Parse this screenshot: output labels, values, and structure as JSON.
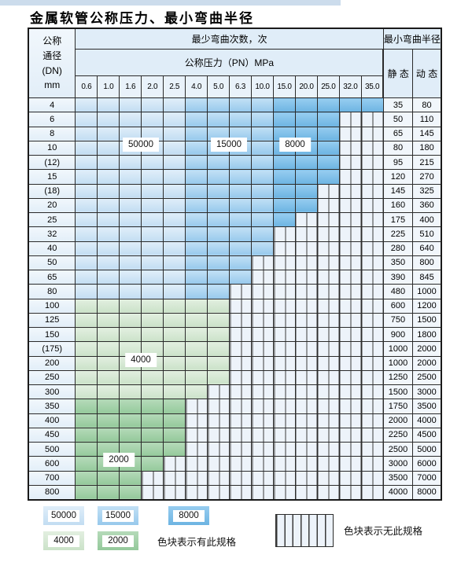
{
  "page_title": "金属软管公称压力、最小弯曲半径",
  "table": {
    "header": {
      "dn_label_lines": [
        "公称",
        "通径",
        "(DN)",
        "mm"
      ],
      "cycles_label": "最少弯曲次数，次",
      "pressure_label": "公称压力（PN）MPa",
      "pressure_columns": [
        "0.6",
        "1.0",
        "1.6",
        "2.0",
        "2.5",
        "4.0",
        "5.0",
        "6.3",
        "10.0",
        "15.0",
        "20.0",
        "25.0",
        "32.0",
        "35.0"
      ],
      "radius_label": "最小弯曲半径",
      "static_label": "静 态",
      "dynamic_label": "动 态"
    },
    "band_rules": {
      "blue_50000_columns": [
        "0.6",
        "1.0",
        "1.6",
        "2.0",
        "2.5"
      ],
      "blue_15000_columns": [
        "4.0",
        "5.0",
        "6.3",
        "10.0"
      ],
      "blue_8000_columns": [
        "15.0",
        "20.0",
        "25.0",
        "32.0",
        "35.0"
      ]
    },
    "rows": [
      {
        "dn": "4",
        "colored_through": "35.0",
        "palette": "blue",
        "static": "35",
        "dynamic": "80"
      },
      {
        "dn": "6",
        "colored_through": "25.0",
        "palette": "blue",
        "static": "50",
        "dynamic": "110"
      },
      {
        "dn": "8",
        "colored_through": "25.0",
        "palette": "blue",
        "static": "65",
        "dynamic": "145"
      },
      {
        "dn": "10",
        "colored_through": "25.0",
        "palette": "blue",
        "static": "80",
        "dynamic": "180"
      },
      {
        "dn": "(12)",
        "colored_through": "25.0",
        "palette": "blue",
        "static": "95",
        "dynamic": "215"
      },
      {
        "dn": "15",
        "colored_through": "25.0",
        "palette": "blue",
        "static": "120",
        "dynamic": "270"
      },
      {
        "dn": "(18)",
        "colored_through": "20.0",
        "palette": "blue",
        "static": "145",
        "dynamic": "325"
      },
      {
        "dn": "20",
        "colored_through": "20.0",
        "palette": "blue",
        "static": "160",
        "dynamic": "360"
      },
      {
        "dn": "25",
        "colored_through": "15.0",
        "palette": "blue",
        "static": "175",
        "dynamic": "400"
      },
      {
        "dn": "32",
        "colored_through": "10.0",
        "palette": "blue",
        "static": "225",
        "dynamic": "510"
      },
      {
        "dn": "40",
        "colored_through": "10.0",
        "palette": "blue",
        "static": "280",
        "dynamic": "640"
      },
      {
        "dn": "50",
        "colored_through": "6.3",
        "palette": "blue",
        "static": "350",
        "dynamic": "800"
      },
      {
        "dn": "65",
        "colored_through": "6.3",
        "palette": "blue",
        "static": "390",
        "dynamic": "845"
      },
      {
        "dn": "80",
        "colored_through": "5.0",
        "palette": "blue",
        "static": "480",
        "dynamic": "1000"
      },
      {
        "dn": "100",
        "colored_through": "5.0",
        "palette": "green4000",
        "static": "600",
        "dynamic": "1200"
      },
      {
        "dn": "125",
        "colored_through": "5.0",
        "palette": "green4000",
        "static": "750",
        "dynamic": "1500"
      },
      {
        "dn": "150",
        "colored_through": "5.0",
        "palette": "green4000",
        "static": "900",
        "dynamic": "1800"
      },
      {
        "dn": "(175)",
        "colored_through": "5.0",
        "palette": "green4000",
        "static": "1000",
        "dynamic": "2000"
      },
      {
        "dn": "200",
        "colored_through": "5.0",
        "palette": "green4000",
        "static": "1000",
        "dynamic": "2000"
      },
      {
        "dn": "250",
        "colored_through": "5.0",
        "palette": "green4000",
        "static": "1250",
        "dynamic": "2500"
      },
      {
        "dn": "300",
        "colored_through": "4.0",
        "palette": "green4000",
        "static": "1500",
        "dynamic": "3000"
      },
      {
        "dn": "350",
        "colored_through": "2.5",
        "palette": "green2000",
        "static": "1750",
        "dynamic": "3500"
      },
      {
        "dn": "400",
        "colored_through": "2.5",
        "palette": "green2000",
        "static": "2000",
        "dynamic": "4000"
      },
      {
        "dn": "450",
        "colored_through": "2.5",
        "palette": "green2000",
        "static": "2250",
        "dynamic": "4500"
      },
      {
        "dn": "500",
        "colored_through": "2.5",
        "palette": "green2000",
        "static": "2500",
        "dynamic": "5000"
      },
      {
        "dn": "600",
        "colored_through": "2.0",
        "palette": "green2000",
        "static": "3000",
        "dynamic": "6000"
      },
      {
        "dn": "700",
        "colored_through": "1.6",
        "palette": "green2000",
        "static": "3500",
        "dynamic": "7000"
      },
      {
        "dn": "800",
        "colored_through": "1.6",
        "palette": "green2000",
        "static": "4000",
        "dynamic": "8000"
      }
    ],
    "overlay_labels": [
      {
        "text": "50000",
        "row_dn": "10",
        "col_start": "1.6",
        "col_end": "2.0"
      },
      {
        "text": "15000",
        "row_dn": "10",
        "col_start": "5.0",
        "col_end": "6.3"
      },
      {
        "text": "8000",
        "row_dn": "10",
        "col_start": "15.0",
        "col_end": "20.0"
      },
      {
        "text": "4000",
        "row_dn": "200",
        "col_start": "1.6",
        "col_end": "2.0"
      },
      {
        "text": "2000",
        "row_dn": "600",
        "col_start": "1.0",
        "col_end": "1.6"
      }
    ]
  },
  "legend": {
    "items": [
      {
        "label": "50000",
        "band": "band_50000"
      },
      {
        "label": "15000",
        "band": "band_15000"
      },
      {
        "label": "8000",
        "band": "band_8000"
      },
      {
        "label": "4000",
        "band": "band_4000"
      },
      {
        "label": "2000",
        "band": "band_2000"
      }
    ],
    "has_spec_label": "色块表示有此规格",
    "no_spec_label": "色块表示无此规格"
  },
  "colors": {
    "band_50000": [
      "#e0eef9",
      "#c2ddf2"
    ],
    "band_15000": [
      "#c2e0f5",
      "#97c9ec"
    ],
    "band_8000": [
      "#97cdf0",
      "#6db4e2"
    ],
    "band_4000": [
      "#e2efe0",
      "#cbe2c9"
    ],
    "band_2000": [
      "#b5dab9",
      "#94c99b"
    ],
    "hatch_bg": "#edf3fa",
    "hatch_line": "#3b3b3b",
    "dn_cell_bg": [
      "#f1f7fc",
      "#e2eef8"
    ],
    "value_cell_bg": "#f1f6fb",
    "header_bg": "#e0edf8",
    "header_num_bg": "#e9f2fa",
    "top_strip": "#ccdcec"
  }
}
